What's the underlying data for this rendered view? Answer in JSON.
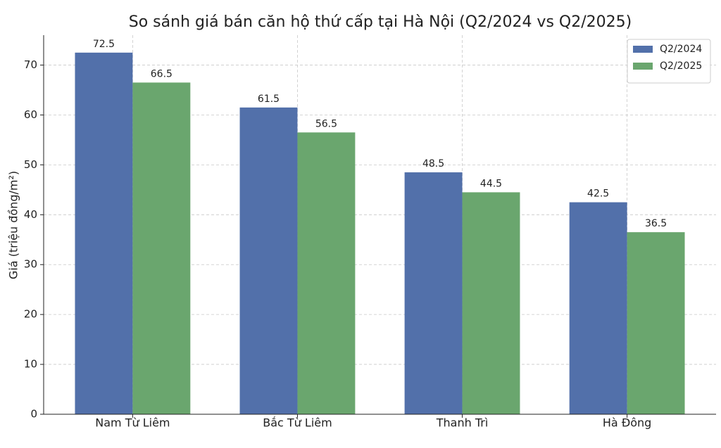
{
  "chart_data": {
    "type": "bar",
    "title": "So sánh giá bán căn hộ thứ cấp tại Hà Nội (Q2/2024 vs Q2/2025)",
    "y_label": "Giá (triệu đồng/m²)",
    "categories": [
      "Nam Từ Liêm",
      "Bắc Từ Liêm",
      "Thanh Trì",
      "Hà Đông"
    ],
    "series": [
      {
        "name": "Q2/2024",
        "color": "#5270aa",
        "values": [
          72.5,
          61.5,
          48.5,
          42.5
        ]
      },
      {
        "name": "Q2/2025",
        "color": "#6aa66e",
        "values": [
          66.5,
          56.5,
          44.5,
          36.5
        ]
      }
    ],
    "ylim": [
      0,
      76
    ],
    "yticks": [
      0,
      10,
      20,
      30,
      40,
      50,
      60,
      70
    ],
    "grid": true,
    "legend": "upper right"
  }
}
